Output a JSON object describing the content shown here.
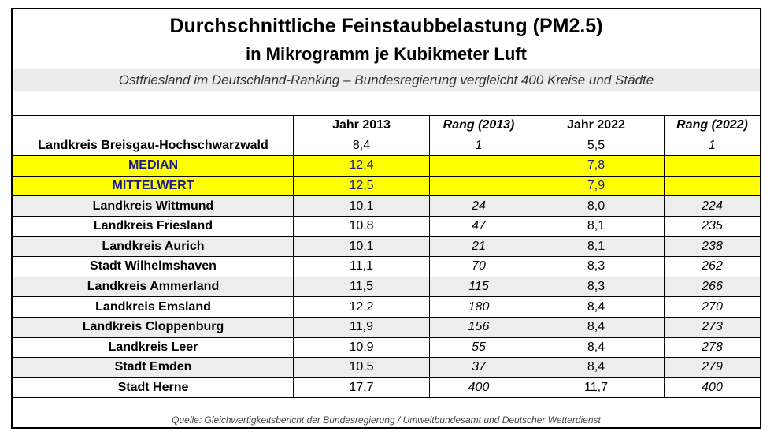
{
  "chart_data": {
    "type": "table",
    "title": "Durchschnittliche Feinstaubbelastung (PM2.5)",
    "subtitle": "in Mikrogramm je Kubikmeter Luft",
    "caption": "Ostfriesland im Deutschland-Ranking – Bundesregierung vergleicht 400 Kreise und Städte",
    "columns": [
      "",
      "Jahr 2013",
      "Rang (2013)",
      "Jahr 2022",
      "Rang (2022)"
    ],
    "rows": [
      {
        "name": "Landkreis Breisgau-Hochschwarzwald",
        "y2013": "8,4",
        "r2013": "1",
        "y2022": "5,5",
        "r2022": "1",
        "style": "plain"
      },
      {
        "name": "MEDIAN",
        "y2013": "12,4",
        "r2013": "",
        "y2022": "7,8",
        "r2022": "",
        "style": "highlight"
      },
      {
        "name": "MITTELWERT",
        "y2013": "12,5",
        "r2013": "",
        "y2022": "7,9",
        "r2022": "",
        "style": "highlight"
      },
      {
        "name": "Landkreis Wittmund",
        "y2013": "10,1",
        "r2013": "24",
        "y2022": "8,0",
        "r2022": "224",
        "style": "alt"
      },
      {
        "name": "Landkreis Friesland",
        "y2013": "10,8",
        "r2013": "47",
        "y2022": "8,1",
        "r2022": "235",
        "style": "plain"
      },
      {
        "name": "Landkreis Aurich",
        "y2013": "10,1",
        "r2013": "21",
        "y2022": "8,1",
        "r2022": "238",
        "style": "alt"
      },
      {
        "name": "Stadt Wilhelmshaven",
        "y2013": "11,1",
        "r2013": "70",
        "y2022": "8,3",
        "r2022": "262",
        "style": "plain"
      },
      {
        "name": "Landkreis Ammerland",
        "y2013": "11,5",
        "r2013": "115",
        "y2022": "8,3",
        "r2022": "266",
        "style": "alt"
      },
      {
        "name": "Landkreis Emsland",
        "y2013": "12,2",
        "r2013": "180",
        "y2022": "8,4",
        "r2022": "270",
        "style": "plain"
      },
      {
        "name": "Landkreis Cloppenburg",
        "y2013": "11,9",
        "r2013": "156",
        "y2022": "8,4",
        "r2022": "273",
        "style": "alt"
      },
      {
        "name": "Landkreis Leer",
        "y2013": "10,9",
        "r2013": "55",
        "y2022": "8,4",
        "r2022": "278",
        "style": "plain"
      },
      {
        "name": "Stadt Emden",
        "y2013": "10,5",
        "r2013": "37",
        "y2022": "8,4",
        "r2022": "279",
        "style": "alt"
      },
      {
        "name": "Stadt Herne",
        "y2013": "17,7",
        "r2013": "400",
        "y2022": "11,7",
        "r2022": "400",
        "style": "plain"
      }
    ],
    "source": "Quelle: Gleichwertigkeitsbericht der Bundesregierung / Umweltbundesamt und Deutscher Wetterdienst",
    "colors": {
      "highlight": "#ffff00",
      "highlight_text": "#1a1a8a",
      "alt_row": "#ededed",
      "band": "#ececec"
    }
  }
}
